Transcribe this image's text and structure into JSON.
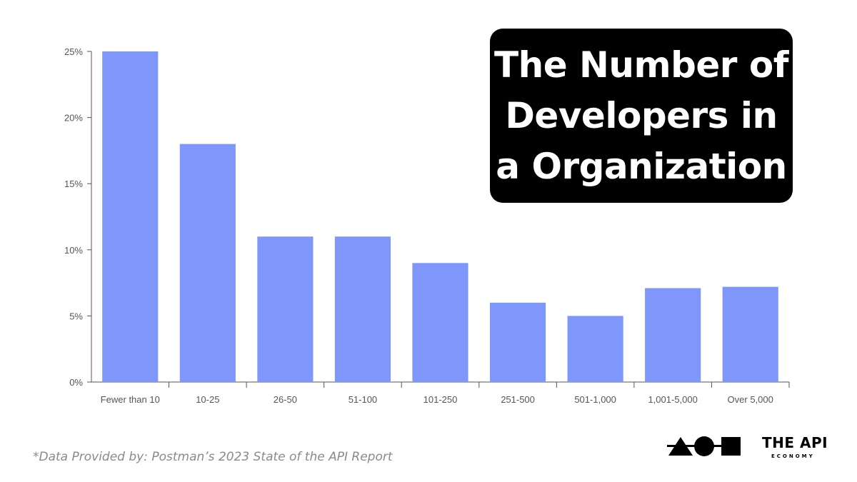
{
  "title": {
    "lines": [
      "The Number of",
      "Developers in",
      "a Organization"
    ]
  },
  "source_note": "*Data Provided by: Postman’s 2023 State of the API Report",
  "brand": {
    "name_main": "THE API",
    "name_sub": "ECONOMY"
  },
  "colors": {
    "bar": "#7f96fb",
    "axis": "#555555",
    "title_bg": "#000000"
  },
  "chart_data": {
    "type": "bar",
    "title": "The Number of Developers in a Organization",
    "categories": [
      "Fewer than 10",
      "10-25",
      "26-50",
      "51-100",
      "101-250",
      "251-500",
      "501-1,000",
      "1,001-5,000",
      "Over 5,000"
    ],
    "values": [
      25,
      18,
      11,
      11,
      9,
      6,
      5,
      7.1,
      7.2
    ],
    "ylim": [
      0,
      25
    ],
    "yticks": [
      0,
      5,
      10,
      15,
      20,
      25
    ],
    "ytick_labels": [
      "0%",
      "5%",
      "10%",
      "15%",
      "20%",
      "25%"
    ],
    "xlabel": "",
    "ylabel": "",
    "grid": false,
    "legend": "none"
  }
}
